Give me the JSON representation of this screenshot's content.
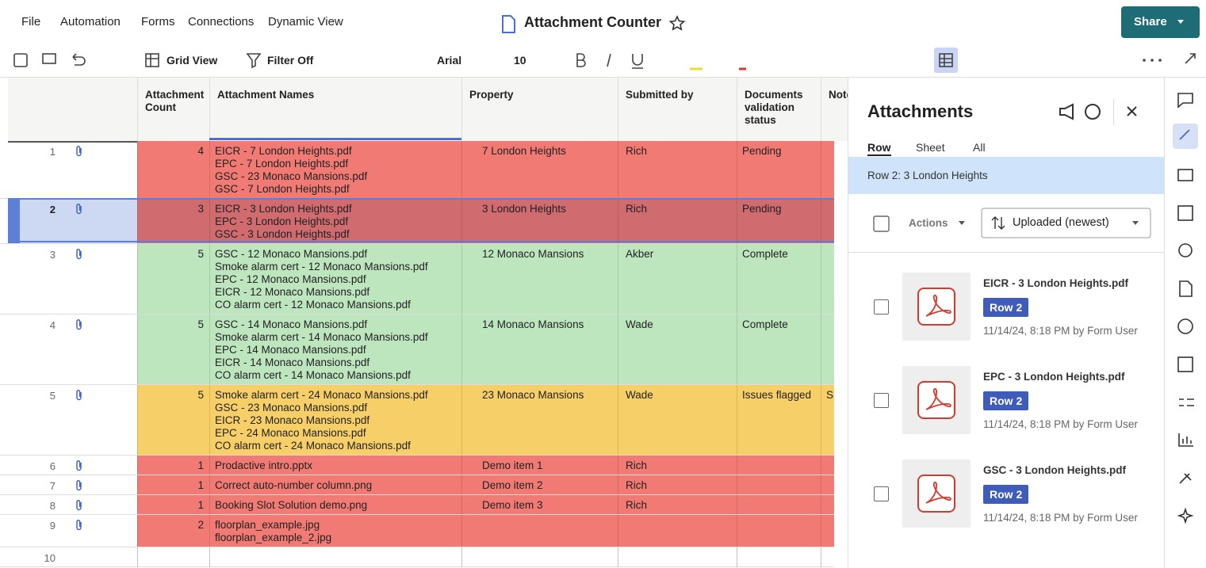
{
  "menu": [
    "File",
    "Automation",
    "Forms",
    "Connections",
    "Dynamic View"
  ],
  "title": "Attachment Counter",
  "share": "Share",
  "toolbar": {
    "view": "Grid View",
    "filter": "Filter Off",
    "font": "Arial",
    "size": "10"
  },
  "grid": {
    "columns": [
      "Attachment Count",
      "Attachment Names",
      "Property",
      "Submitted by",
      "Documents validation status",
      "Note"
    ],
    "rows": [
      {
        "num": 1,
        "fill": "#f17b74",
        "count": 4,
        "names": [
          "EICR - 7 London Heights.pdf",
          "EPC - 7 London Heights.pdf",
          "GSC - 23 Monaco Mansions.pdf",
          "GSC - 7 London Heights.pdf"
        ],
        "property": "7 London Heights",
        "submitted": "Rich",
        "status": "Pending"
      },
      {
        "num": 2,
        "fill": "#d06b6f",
        "count": 3,
        "names": [
          "EICR - 3 London Heights.pdf",
          "EPC - 3 London Heights.pdf",
          "GSC - 3 London Heights.pdf"
        ],
        "property": "3 London Heights",
        "submitted": "Rich",
        "status": "Pending"
      },
      {
        "num": 3,
        "fill": "#bde5be",
        "count": 5,
        "names": [
          "GSC - 12 Monaco Mansions.pdf",
          "Smoke alarm cert - 12 Monaco Mansions.pdf",
          "EPC - 12 Monaco Mansions.pdf",
          "EICR - 12 Monaco Mansions.pdf",
          "CO alarm cert - 12 Monaco Mansions.pdf"
        ],
        "property": "12 Monaco Mansions",
        "submitted": "Akber",
        "status": "Complete"
      },
      {
        "num": 4,
        "fill": "#bde5be",
        "count": 5,
        "names": [
          "GSC - 14 Monaco Mansions.pdf",
          "Smoke alarm cert - 14 Monaco Mansions.pdf",
          "EPC - 14 Monaco Mansions.pdf",
          "EICR - 14 Monaco Mansions.pdf",
          "CO alarm cert - 14 Monaco Mansions.pdf"
        ],
        "property": "14 Monaco Mansions",
        "submitted": "Wade",
        "status": "Complete"
      },
      {
        "num": 5,
        "fill": "#f7cf69",
        "count": 5,
        "names": [
          "Smoke alarm cert - 24 Monaco Mansions.pdf",
          "GSC - 23 Monaco Mansions.pdf",
          "EICR - 23 Monaco Mansions.pdf",
          "EPC - 24 Monaco Mansions.pdf",
          "CO alarm cert - 24 Monaco Mansions.pdf"
        ],
        "property": "23 Monaco Mansions",
        "submitted": "Wade",
        "status": "Issues flagged",
        "note": "S"
      },
      {
        "num": 6,
        "fill": "#f17b74",
        "count": 1,
        "names": [
          "Prodactive intro.pptx"
        ],
        "property": "Demo item 1",
        "submitted": "Rich"
      },
      {
        "num": 7,
        "fill": "#f17b74",
        "count": 1,
        "names": [
          "Correct auto-number column.png"
        ],
        "property": "Demo item 2",
        "submitted": "Rich"
      },
      {
        "num": 8,
        "fill": "#f17b74",
        "count": 1,
        "names": [
          "Booking Slot Solution demo.png"
        ],
        "property": "Demo item 3",
        "submitted": "Rich"
      },
      {
        "num": 9,
        "fill": "#f17b74",
        "count": 2,
        "names": [
          "floorplan_example.jpg",
          "floorplan_example_2.jpg"
        ]
      },
      {
        "num": 10
      }
    ]
  },
  "panel": {
    "title": "Attachments",
    "tabs": [
      "Row",
      "Sheet",
      "All"
    ],
    "selected": "Row 2: 3 London Heights",
    "actions": "Actions",
    "sort": "Uploaded (newest)",
    "items": [
      {
        "name": "EICR - 3 London Heights.pdf",
        "row": "Row 2",
        "meta": "11/14/24, 8:18 PM by Form User"
      },
      {
        "name": "EPC - 3 London Heights.pdf",
        "row": "Row 2",
        "meta": "11/14/24, 8:18 PM by Form User"
      },
      {
        "name": "GSC - 3 London Heights.pdf",
        "row": "Row 2",
        "meta": "11/14/24, 8:18 PM by Form User"
      }
    ]
  }
}
